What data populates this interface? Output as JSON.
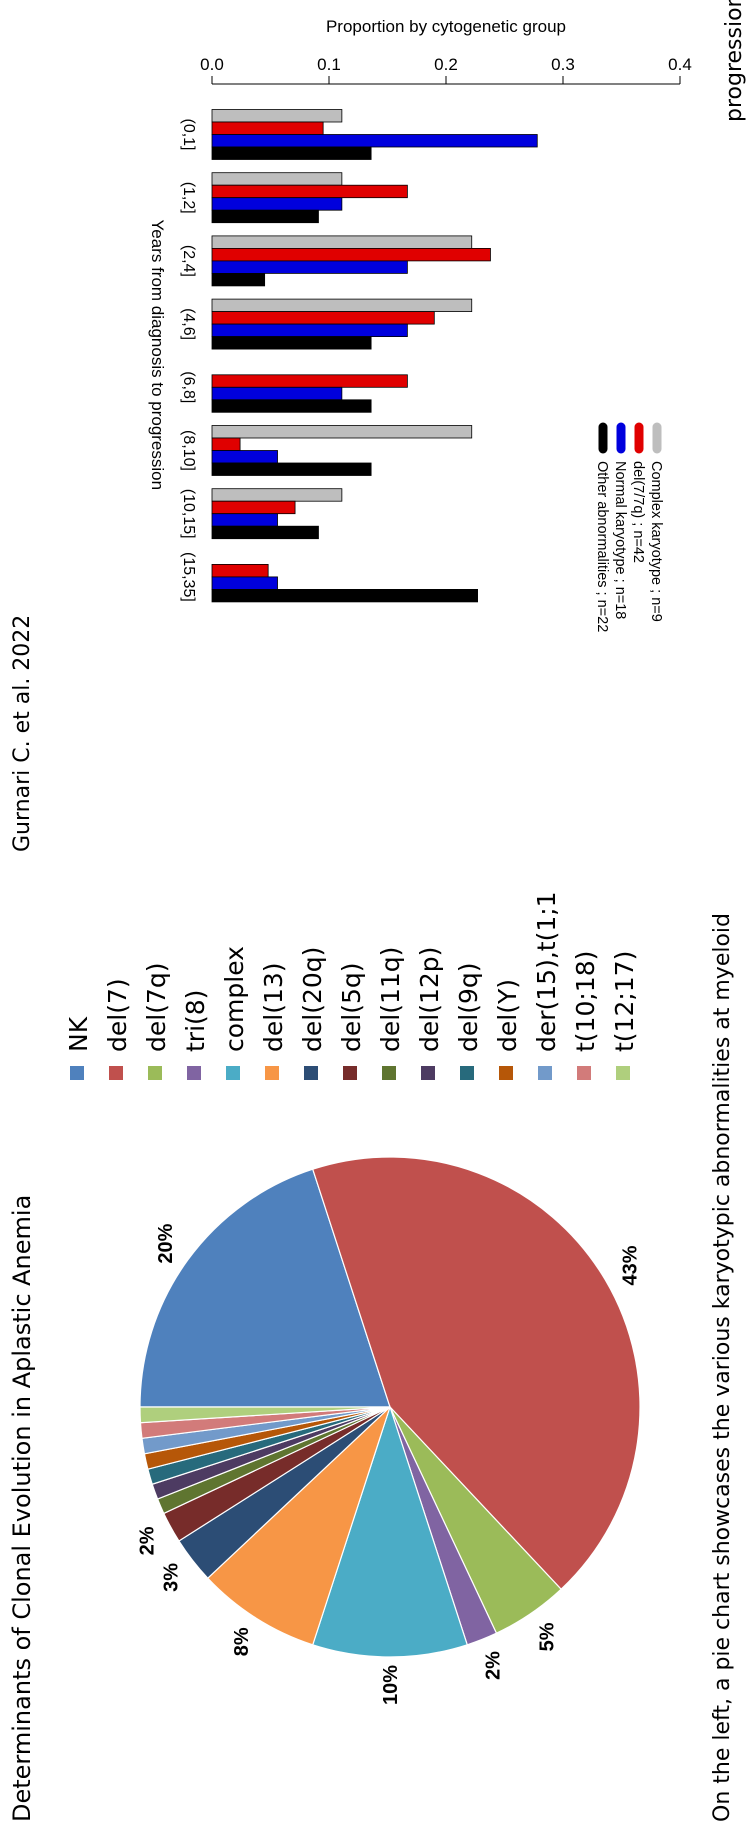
{
  "page": {
    "left_title": "Determinants of Clonal Evolution in Aplastic Anemia",
    "right_title": "Gurnari C. et al. 2022",
    "caption": "On the left, a pie chart showcases the various karyotypic abnormalities at myeloid",
    "caption_right": "progression,"
  },
  "chart_data": [
    {
      "type": "pie",
      "categories": [
        "NK",
        "del(7)",
        "del(7q)",
        "tri(8)",
        "complex",
        "del(13)",
        "del(20q)",
        "del(5q)",
        "del(11q)",
        "del(12p)",
        "del(9q)",
        "del(Y)",
        "der(15),t(1;15)",
        "t(10;18)",
        "t(12;17)"
      ],
      "values": [
        20,
        43,
        5,
        2,
        10,
        8,
        3,
        2,
        1,
        1,
        1,
        1,
        1,
        1,
        1
      ],
      "data_labels": [
        "20%",
        "43%",
        "5%",
        "2%",
        "10%",
        "8%",
        "3%",
        "2%",
        "",
        "",
        "",
        "",
        "",
        "",
        ""
      ],
      "colors": [
        "#4F81BD",
        "#C0504D",
        "#9BBB59",
        "#8064A2",
        "#4BACC6",
        "#F79646",
        "#2C4D75",
        "#772C2A",
        "#5F7530",
        "#4D3B62",
        "#276A7C",
        "#B65708",
        "#729ACA",
        "#D27B7A",
        "#AFCF7D"
      ],
      "legend_position": "right"
    },
    {
      "type": "bar",
      "ylabel": "Proportion by cytogenetic group",
      "xlabel": "Years from diagnosis to progression",
      "ylim": [
        0,
        0.4
      ],
      "yticks": [
        "0.0",
        "0.1",
        "0.2",
        "0.3",
        "0.4"
      ],
      "categories": [
        "(0,1]",
        "(1,2]",
        "(2,4]",
        "(4,6]",
        "(6,8]",
        "(8,10]",
        "(10,15]",
        "(15,35]"
      ],
      "series": [
        {
          "name": "Complex karyotype ; n=9",
          "color": "#BEBEBE",
          "values": [
            0.111,
            0.111,
            0.222,
            0.222,
            0.0,
            0.222,
            0.111,
            0.0
          ]
        },
        {
          "name": "del(7/7q) ; n=42",
          "color": "#E00000",
          "values": [
            0.095,
            0.167,
            0.238,
            0.19,
            0.167,
            0.024,
            0.071,
            0.048
          ]
        },
        {
          "name": "Normal karyotype ; n=18",
          "color": "#0000DD",
          "values": [
            0.278,
            0.111,
            0.167,
            0.167,
            0.111,
            0.056,
            0.056,
            0.056
          ]
        },
        {
          "name": "Other abnormalities ; n=22",
          "color": "#000000",
          "values": [
            0.136,
            0.091,
            0.045,
            0.136,
            0.136,
            0.136,
            0.091,
            0.227
          ]
        }
      ],
      "legend_position": "top-left"
    }
  ]
}
